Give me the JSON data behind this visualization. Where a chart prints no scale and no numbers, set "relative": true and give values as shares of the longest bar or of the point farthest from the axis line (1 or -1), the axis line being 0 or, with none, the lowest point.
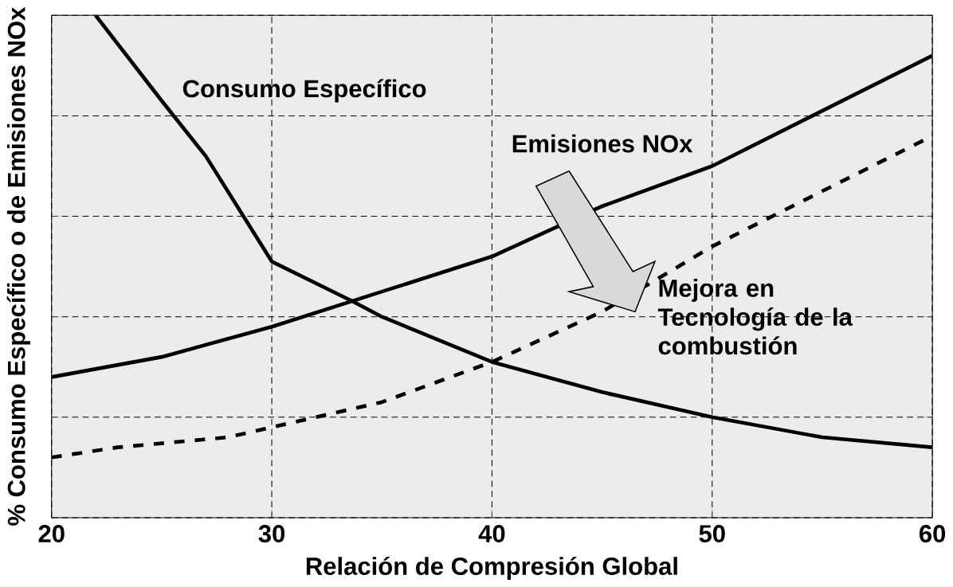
{
  "chart_data": {
    "type": "line",
    "relative": true,
    "xlabel": "Relación de Compresión Global",
    "ylabel": "% Consumo Específico o de Emisiones NOx",
    "xlim": [
      20,
      60
    ],
    "xticks": [
      20,
      30,
      40,
      50,
      60
    ],
    "grid": true,
    "marker": "none",
    "annotations": [
      "Mejora en Tecnología de la combustión"
    ],
    "series": [
      {
        "name": "Consumo Específico",
        "color": "#000000",
        "line_style": "solid",
        "x": [
          22,
          25,
          27,
          30,
          33.7,
          35,
          40,
          45,
          50,
          55,
          60
        ],
        "values": [
          1.0,
          0.83,
          0.72,
          0.51,
          0.43,
          0.4,
          0.31,
          0.25,
          0.2,
          0.16,
          0.14
        ]
      },
      {
        "name": "Emisiones NOx",
        "color": "#000000",
        "line_style": "solid",
        "x": [
          20,
          25,
          30,
          35,
          40,
          45,
          50,
          55,
          60
        ],
        "values": [
          0.28,
          0.32,
          0.38,
          0.45,
          0.52,
          0.62,
          0.7,
          0.81,
          0.92
        ]
      },
      {
        "color": "#000000",
        "line_style": "dashed",
        "x": [
          20,
          23,
          28,
          30,
          35,
          40,
          45,
          50,
          55,
          60
        ],
        "values": [
          0.12,
          0.14,
          0.16,
          0.18,
          0.23,
          0.31,
          0.41,
          0.54,
          0.65,
          0.76
        ]
      }
    ]
  }
}
